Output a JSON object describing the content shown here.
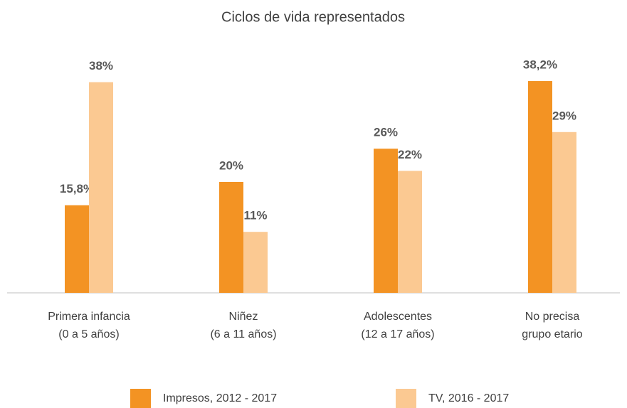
{
  "chart_data": {
    "type": "bar",
    "title": "Ciclos de vida representados",
    "categories": [
      [
        "Primera infancia",
        "(0 a 5 años)"
      ],
      [
        "Niñez",
        "(6 a 11 años)"
      ],
      [
        "Adolescentes",
        "(12 a 17 años)"
      ],
      [
        "No precisa",
        "grupo etario"
      ]
    ],
    "series": [
      {
        "name": "Impresos, 2012 - 2017",
        "color": "#f39323",
        "values": [
          15.8,
          20,
          26,
          38.2
        ],
        "value_labels": [
          "15,8%",
          "20%",
          "26%",
          "38,2%"
        ]
      },
      {
        "name": "TV, 2016 - 2017",
        "color": "#fbc992",
        "values": [
          38,
          11,
          22,
          29
        ],
        "value_labels": [
          "38%",
          "11%",
          "22%",
          "29%"
        ]
      }
    ],
    "ylim": [
      0,
      40
    ],
    "legend": "bottom"
  }
}
